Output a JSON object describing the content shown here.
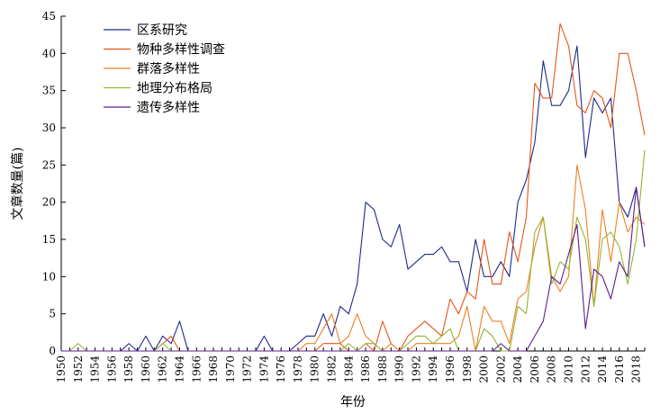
{
  "chart_data": {
    "type": "line",
    "title": "",
    "xlabel": "年份",
    "ylabel": "文章数量(篇)",
    "xlim": [
      1950,
      2019
    ],
    "ylim": [
      0,
      45
    ],
    "y_ticks": [
      0,
      5,
      10,
      15,
      20,
      25,
      30,
      35,
      40,
      45
    ],
    "x_ticks": [
      1950,
      1952,
      1954,
      1956,
      1958,
      1960,
      1962,
      1964,
      1966,
      1968,
      1970,
      1972,
      1974,
      1976,
      1978,
      1980,
      1982,
      1984,
      1986,
      1988,
      1990,
      1992,
      1994,
      1996,
      1998,
      2000,
      2002,
      2004,
      2006,
      2008,
      2010,
      2012,
      2014,
      2016,
      2018
    ],
    "grid": false,
    "legend_position": "top-left",
    "x": [
      1950,
      1951,
      1952,
      1953,
      1954,
      1955,
      1956,
      1957,
      1958,
      1959,
      1960,
      1961,
      1962,
      1963,
      1964,
      1965,
      1966,
      1967,
      1968,
      1969,
      1970,
      1971,
      1972,
      1973,
      1974,
      1975,
      1976,
      1977,
      1978,
      1979,
      1980,
      1981,
      1982,
      1983,
      1984,
      1985,
      1986,
      1987,
      1988,
      1989,
      1990,
      1991,
      1992,
      1993,
      1994,
      1995,
      1996,
      1997,
      1998,
      1999,
      2000,
      2001,
      2002,
      2003,
      2004,
      2005,
      2006,
      2007,
      2008,
      2009,
      2010,
      2011,
      2012,
      2013,
      2014,
      2015,
      2016,
      2017,
      2018,
      2019
    ],
    "series": [
      {
        "name": "区系研究",
        "color": "#1f2a8c",
        "values": [
          0,
          0,
          0,
          0,
          0,
          0,
          0,
          0,
          1,
          0,
          2,
          0,
          2,
          1,
          4,
          0,
          0,
          0,
          0,
          0,
          0,
          0,
          0,
          0,
          2,
          0,
          0,
          0,
          1,
          2,
          2,
          5,
          2,
          6,
          5,
          9,
          20,
          19,
          15,
          14,
          17,
          11,
          12,
          13,
          13,
          14,
          12,
          12,
          8,
          15,
          10,
          10,
          12,
          10,
          20,
          23,
          28,
          39,
          33,
          33,
          35,
          41,
          26,
          34,
          32,
          34,
          20,
          18,
          22,
          14
        ]
      },
      {
        "name": "物种多样性调查",
        "color": "#e8541a",
        "values": [
          0,
          0,
          0,
          0,
          0,
          0,
          0,
          0,
          0,
          0,
          0,
          0,
          1,
          2,
          0,
          0,
          0,
          0,
          0,
          0,
          0,
          0,
          0,
          0,
          0,
          0,
          0,
          0,
          0,
          0,
          0,
          1,
          1,
          1,
          0,
          0,
          1,
          0,
          4,
          1,
          0,
          2,
          3,
          4,
          3,
          2,
          7,
          5,
          8,
          7,
          15,
          9,
          9,
          16,
          12,
          18,
          36,
          34,
          34,
          44,
          41,
          33,
          32,
          35,
          34,
          30,
          40,
          40,
          35,
          29
        ]
      },
      {
        "name": "群落多样性",
        "color": "#f07e22",
        "values": [
          0,
          0,
          0,
          0,
          0,
          0,
          0,
          0,
          0,
          0,
          0,
          0,
          0,
          0,
          0,
          0,
          0,
          0,
          0,
          0,
          0,
          0,
          0,
          0,
          0,
          0,
          0,
          0,
          0,
          1,
          1,
          3,
          5,
          1,
          2,
          5,
          2,
          1,
          0,
          1,
          0,
          0,
          1,
          1,
          1,
          1,
          1,
          2,
          6,
          0,
          6,
          4,
          4,
          1,
          7,
          8,
          14,
          18,
          10,
          8,
          10,
          25,
          19,
          6,
          19,
          12,
          20,
          16,
          18,
          17
        ]
      },
      {
        "name": "地理分布格局",
        "color": "#8fb832",
        "values": [
          0,
          0,
          1,
          0,
          0,
          0,
          0,
          0,
          0,
          0,
          0,
          0,
          1,
          0,
          0,
          0,
          0,
          0,
          0,
          0,
          0,
          0,
          0,
          0,
          0,
          0,
          0,
          0,
          0,
          0,
          0,
          0,
          0,
          0,
          1,
          0,
          1,
          1,
          0,
          0,
          0,
          1,
          2,
          2,
          1,
          2,
          3,
          0,
          0,
          0,
          3,
          2,
          0,
          0,
          6,
          5,
          16,
          18,
          9,
          12,
          11,
          18,
          15,
          6,
          15,
          16,
          14,
          9,
          15,
          27
        ]
      },
      {
        "name": "遗传多样性",
        "color": "#5c1f8f",
        "values": [
          0,
          0,
          0,
          0,
          0,
          0,
          0,
          0,
          0,
          0,
          0,
          0,
          0,
          0,
          0,
          0,
          0,
          0,
          0,
          0,
          0,
          0,
          0,
          0,
          0,
          0,
          0,
          0,
          0,
          0,
          0,
          0,
          0,
          0,
          0,
          0,
          0,
          0,
          0,
          0,
          0,
          0,
          0,
          0,
          0,
          0,
          0,
          0,
          0,
          0,
          0,
          0,
          1,
          0,
          0,
          0,
          2,
          4,
          10,
          9,
          13,
          17,
          3,
          11,
          10,
          7,
          12,
          10,
          22,
          14
        ]
      }
    ]
  }
}
